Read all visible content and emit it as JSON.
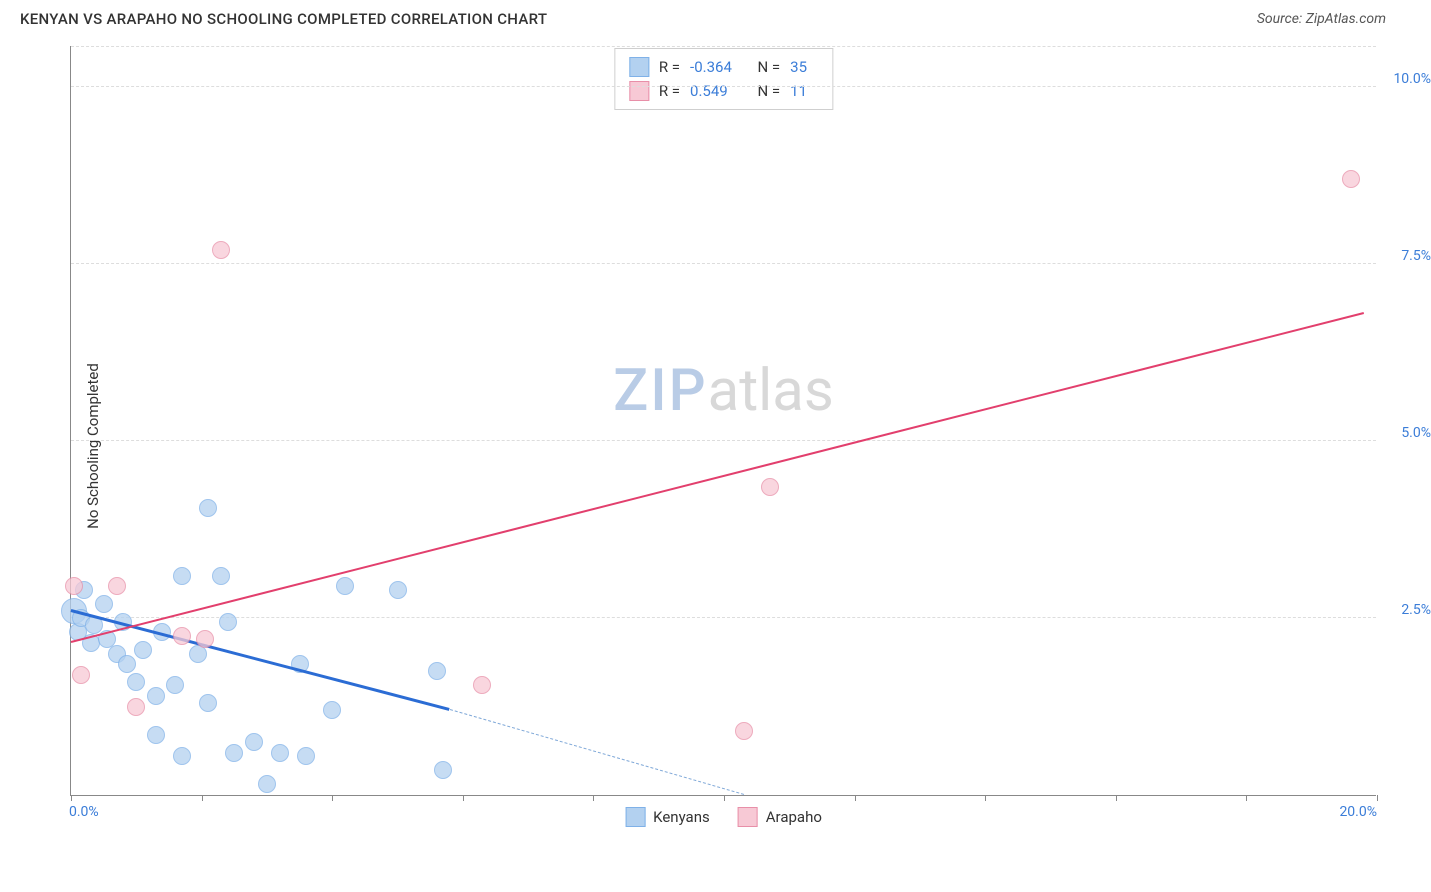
{
  "header": {
    "title": "KENYAN VS ARAPAHO NO SCHOOLING COMPLETED CORRELATION CHART",
    "source": "Source: ZipAtlas.com"
  },
  "chart": {
    "type": "scatter",
    "ylabel": "No Schooling Completed",
    "xlim": [
      0,
      20
    ],
    "ylim": [
      0,
      10.6
    ],
    "xticks": [
      0,
      2,
      4,
      6,
      8,
      10,
      12,
      14,
      16,
      18,
      20
    ],
    "xtick_labels": {
      "0": "0.0%",
      "20": "20.0%"
    },
    "yticks": [
      2.5,
      5.0,
      7.5,
      10.0
    ],
    "ytick_labels": [
      "2.5%",
      "5.0%",
      "7.5%",
      "10.0%"
    ],
    "grid_color": "#dddddd",
    "axis_color": "#888888",
    "background_color": "#ffffff",
    "tick_label_color": "#3b7dd8",
    "watermark": {
      "part1": "ZIP",
      "part2": "atlas"
    },
    "series": [
      {
        "name": "Kenyans",
        "color_fill": "#b3d1f0",
        "color_stroke": "#7fb1e8",
        "marker_radius": 9,
        "opacity": 0.75,
        "R": "-0.364",
        "N": "35",
        "trend": {
          "x1": 0.0,
          "y1": 2.6,
          "x2": 5.8,
          "y2": 1.2,
          "color": "#2b6cd4",
          "width": 2.5
        },
        "trend_dash": {
          "x1": 5.8,
          "y1": 1.2,
          "x2": 10.3,
          "y2": 0.0,
          "color": "#7fa8d8"
        },
        "points": [
          {
            "x": 0.05,
            "y": 2.6,
            "r": 13
          },
          {
            "x": 0.1,
            "y": 2.3
          },
          {
            "x": 0.15,
            "y": 2.5
          },
          {
            "x": 0.2,
            "y": 2.9
          },
          {
            "x": 0.3,
            "y": 2.15
          },
          {
            "x": 0.35,
            "y": 2.4
          },
          {
            "x": 0.5,
            "y": 2.7
          },
          {
            "x": 0.55,
            "y": 2.2
          },
          {
            "x": 0.7,
            "y": 2.0
          },
          {
            "x": 0.8,
            "y": 2.45
          },
          {
            "x": 0.85,
            "y": 1.85
          },
          {
            "x": 1.0,
            "y": 1.6
          },
          {
            "x": 1.1,
            "y": 2.05
          },
          {
            "x": 1.3,
            "y": 1.4
          },
          {
            "x": 1.3,
            "y": 0.85
          },
          {
            "x": 1.4,
            "y": 2.3
          },
          {
            "x": 1.6,
            "y": 1.55
          },
          {
            "x": 1.7,
            "y": 3.1
          },
          {
            "x": 1.7,
            "y": 0.55
          },
          {
            "x": 1.95,
            "y": 2.0
          },
          {
            "x": 2.1,
            "y": 1.3
          },
          {
            "x": 2.1,
            "y": 4.05
          },
          {
            "x": 2.3,
            "y": 3.1
          },
          {
            "x": 2.4,
            "y": 2.45
          },
          {
            "x": 2.5,
            "y": 0.6
          },
          {
            "x": 2.8,
            "y": 0.75
          },
          {
            "x": 3.0,
            "y": 0.15
          },
          {
            "x": 3.2,
            "y": 0.6
          },
          {
            "x": 3.5,
            "y": 1.85
          },
          {
            "x": 3.6,
            "y": 0.55
          },
          {
            "x": 4.0,
            "y": 1.2
          },
          {
            "x": 4.2,
            "y": 2.95
          },
          {
            "x": 5.0,
            "y": 2.9
          },
          {
            "x": 5.6,
            "y": 1.75
          },
          {
            "x": 5.7,
            "y": 0.35
          }
        ]
      },
      {
        "name": "Arapaho",
        "color_fill": "#f7c9d5",
        "color_stroke": "#e88fa8",
        "marker_radius": 9,
        "opacity": 0.75,
        "R": "0.549",
        "N": "11",
        "trend": {
          "x1": 0.0,
          "y1": 2.15,
          "x2": 19.8,
          "y2": 6.8,
          "color": "#e23f6d",
          "width": 2.2
        },
        "points": [
          {
            "x": 0.05,
            "y": 2.95
          },
          {
            "x": 0.15,
            "y": 1.7
          },
          {
            "x": 0.7,
            "y": 2.95
          },
          {
            "x": 1.0,
            "y": 1.25
          },
          {
            "x": 1.7,
            "y": 2.25
          },
          {
            "x": 2.05,
            "y": 2.2
          },
          {
            "x": 2.3,
            "y": 7.7
          },
          {
            "x": 6.3,
            "y": 1.55
          },
          {
            "x": 10.3,
            "y": 0.9
          },
          {
            "x": 10.7,
            "y": 4.35
          },
          {
            "x": 19.6,
            "y": 8.7
          }
        ]
      }
    ],
    "bottom_legend": [
      {
        "label": "Kenyans",
        "fill": "#b3d1f0",
        "stroke": "#7fb1e8"
      },
      {
        "label": "Arapaho",
        "fill": "#f7c9d5",
        "stroke": "#e88fa8"
      }
    ]
  }
}
